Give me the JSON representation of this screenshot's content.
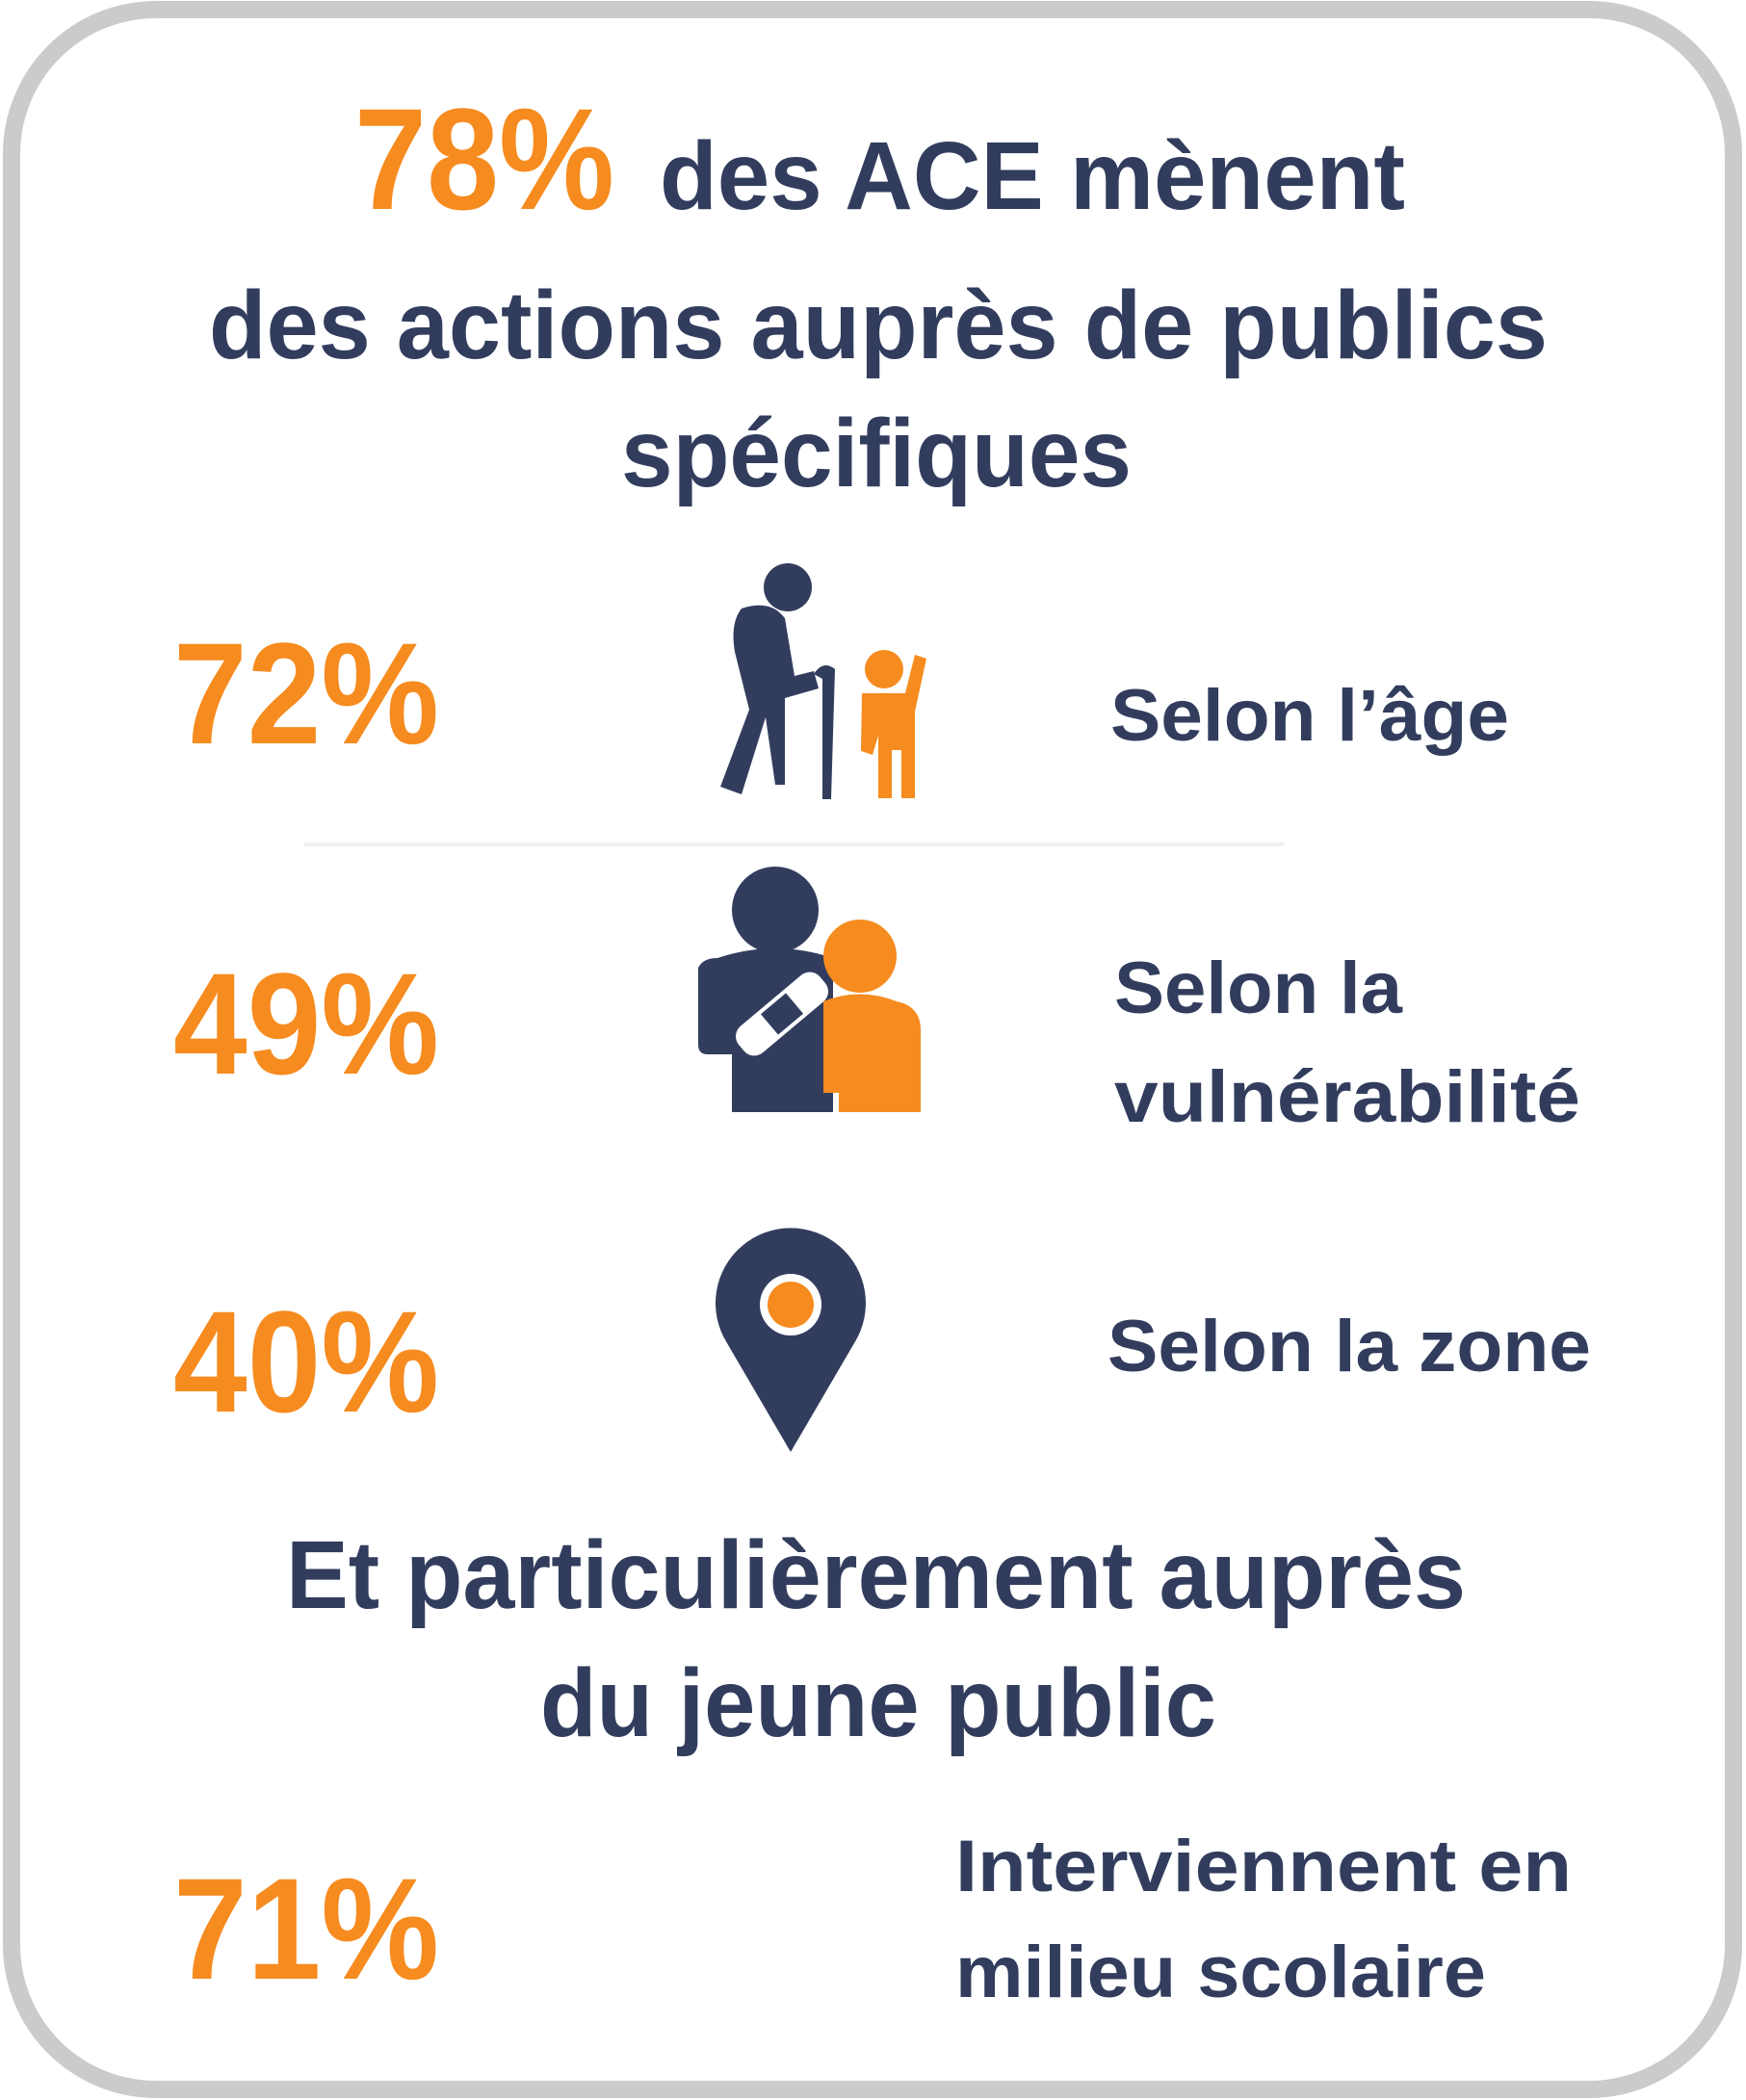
{
  "header": {
    "highlight": "78%",
    "title_lines": [
      "des ACE mènent",
      "des actions auprès de publics",
      "spécifiques"
    ]
  },
  "items": [
    {
      "percent": "72%",
      "label_lines": [
        "Selon l’âge"
      ]
    },
    {
      "percent": "49%",
      "label_lines": [
        "Selon la",
        "vulnérabilité"
      ]
    },
    {
      "percent": "40%",
      "label_lines": [
        "Selon la zone"
      ]
    }
  ],
  "subheading": {
    "lines": [
      "Et particulièrement auprès",
      "du jeune public"
    ]
  },
  "school": {
    "percent": "71%",
    "label_lines": [
      "Interviennent en",
      "milieu scolaire"
    ]
  }
}
